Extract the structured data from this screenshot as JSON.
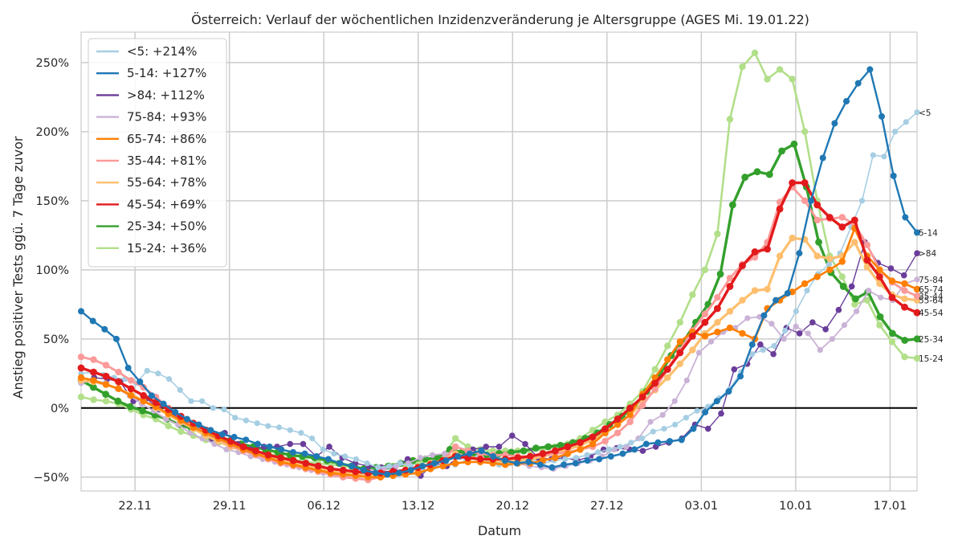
{
  "chart_data": {
    "type": "line",
    "title": "Österreich: Verlauf der wöchentlichen Inzidenzveränderung je Altersgruppe (AGES Mi. 19.01.22)",
    "xlabel": "Datum",
    "ylabel": "Anstieg positiver Tests ggü. 7 Tage zuvor",
    "x_start": "2021-11-18",
    "x_end": "2022-01-19",
    "xlim": [
      "2021-11-18",
      "2022-01-19"
    ],
    "ylim": [
      -60,
      272
    ],
    "xtick_labels": [
      "22.11",
      "29.11",
      "06.12",
      "13.12",
      "20.12",
      "27.12",
      "03.01",
      "10.01",
      "17.01"
    ],
    "ytick_labels": [
      "250%",
      "200%",
      "150%",
      "100%",
      "50%",
      "0%",
      "−50%"
    ],
    "yticks": [
      250,
      200,
      150,
      100,
      50,
      0,
      -50
    ],
    "grid": true,
    "legend_position": "top-left",
    "zero_line": true,
    "series": [
      {
        "name": "<5: +214%",
        "end_label": "<5",
        "color": "#a6cee3",
        "values": [
          25,
          26,
          24,
          22,
          21,
          18,
          27,
          25,
          21,
          13,
          5,
          5,
          0,
          -1,
          -7,
          -9,
          -11,
          -13,
          -14,
          -16,
          -18,
          -22,
          -30,
          -33,
          -35,
          -37,
          -40,
          -43,
          -42,
          -40,
          -42,
          -45,
          -43,
          -40,
          -41,
          -38,
          -36,
          -38,
          -41,
          -40,
          -38,
          -37,
          -40,
          -38,
          -37,
          -36,
          -34,
          -32,
          -30,
          -28,
          -25,
          -22,
          -17,
          -15,
          -12,
          -7,
          -2,
          1,
          7,
          14,
          26,
          39,
          42,
          45,
          56,
          70,
          85,
          97,
          104,
          112,
          131,
          150,
          183,
          182,
          200,
          207,
          214
        ]
      },
      {
        "name": "5-14: +127%",
        "end_label": "5-14",
        "color": "#1f78b4",
        "values": [
          70,
          63,
          57,
          50,
          29,
          19,
          9,
          3,
          -3,
          -8,
          -12,
          -16,
          -19,
          -21,
          -23,
          -26,
          -28,
          -30,
          -32,
          -33,
          -35,
          -37,
          -40,
          -42,
          -45,
          -47,
          -48,
          -47,
          -45,
          -42,
          -40,
          -38,
          -35,
          -33,
          -31,
          -35,
          -38,
          -40,
          -39,
          -41,
          -43,
          -41,
          -40,
          -38,
          -37,
          -35,
          -33,
          -30,
          -26,
          -25,
          -24,
          -23,
          -15,
          -3,
          5,
          12,
          23,
          46,
          67,
          78,
          83,
          112,
          150,
          181,
          206,
          222,
          235,
          245,
          211,
          168,
          138,
          127
        ]
      },
      {
        "name": ">84: +112%",
        "end_label": ">84",
        "color": "#6a3d9a",
        "values": [
          19,
          22,
          21,
          19,
          5,
          7,
          -1,
          -4,
          -11,
          -15,
          -22,
          -18,
          -26,
          -30,
          -28,
          -28,
          -26,
          -26,
          -35,
          -28,
          -36,
          -40,
          -42,
          -43,
          -43,
          -37,
          -49,
          -40,
          -42,
          -35,
          -30,
          -28,
          -28,
          -20,
          -26,
          -36,
          -37,
          -36,
          -38,
          -35,
          -30,
          -29,
          -30,
          -31,
          -28,
          -25,
          -22,
          -12,
          -15,
          -4,
          28,
          32,
          46,
          39,
          58,
          54,
          62,
          57,
          71,
          88,
          120,
          105,
          101,
          96,
          112
        ]
      },
      {
        "name": "75-84: +93%",
        "end_label": "75-84",
        "color": "#cab2d6",
        "values": [
          18,
          20,
          18,
          14,
          9,
          3,
          -2,
          -8,
          -12,
          -18,
          -22,
          -26,
          -30,
          -32,
          -35,
          -37,
          -39,
          -41,
          -43,
          -45,
          -47,
          -48,
          -49,
          -47,
          -46,
          -44,
          -42,
          -40,
          -36,
          -34,
          -33,
          -35,
          -36,
          -37,
          -39,
          -40,
          -40,
          -42,
          -43,
          -44,
          -42,
          -40,
          -38,
          -35,
          -30,
          -28,
          -22,
          -10,
          -5,
          5,
          20,
          40,
          48,
          55,
          58,
          65,
          66,
          61,
          50,
          59,
          54,
          42,
          50,
          60,
          70,
          85,
          80,
          78,
          90,
          93
        ]
      },
      {
        "name": "65-74: +86%",
        "end_label": "65-74",
        "color": "#ff7f00",
        "values": [
          22,
          20,
          17,
          14,
          9,
          5,
          1,
          -4,
          -9,
          -14,
          -18,
          -22,
          -26,
          -30,
          -33,
          -36,
          -39,
          -41,
          -43,
          -45,
          -47,
          -48,
          -49,
          -50,
          -50,
          -49,
          -48,
          -47,
          -44,
          -42,
          -40,
          -39,
          -39,
          -40,
          -41,
          -40,
          -40,
          -38,
          -36,
          -33,
          -30,
          -26,
          -18,
          -12,
          -5,
          10,
          22,
          35,
          48,
          55,
          52,
          55,
          58,
          54,
          50,
          72,
          78,
          84,
          90,
          95,
          100,
          106,
          130,
          110,
          100,
          92,
          90,
          86
        ]
      },
      {
        "name": "35-44: +81%",
        "end_label": "35-44",
        "color": "#fb9a99",
        "values": [
          37,
          35,
          31,
          26,
          20,
          15,
          8,
          0,
          -7,
          -12,
          -17,
          -22,
          -27,
          -31,
          -34,
          -37,
          -40,
          -42,
          -44,
          -46,
          -48,
          -50,
          -51,
          -52,
          -50,
          -48,
          -46,
          -44,
          -41,
          -38,
          -28,
          -31,
          -33,
          -34,
          -34,
          -35,
          -35,
          -34,
          -33,
          -32,
          -30,
          -28,
          -24,
          -18,
          -10,
          2,
          14,
          28,
          42,
          56,
          68,
          80,
          94,
          104,
          109,
          120,
          149,
          160,
          150,
          136,
          137,
          138,
          133,
          118,
          100,
          91,
          85,
          81
        ]
      },
      {
        "name": "55-64: +78%",
        "end_label": "55-64",
        "color": "#fdbf6f",
        "values": [
          20,
          19,
          17,
          14,
          10,
          5,
          0,
          -5,
          -10,
          -15,
          -20,
          -24,
          -28,
          -31,
          -34,
          -36,
          -38,
          -40,
          -42,
          -44,
          -46,
          -47,
          -48,
          -49,
          -48,
          -47,
          -45,
          -43,
          -40,
          -38,
          -33,
          -35,
          -37,
          -38,
          -39,
          -38,
          -37,
          -35,
          -33,
          -30,
          -27,
          -23,
          -18,
          -12,
          -5,
          4,
          13,
          22,
          32,
          42,
          54,
          62,
          70,
          78,
          85,
          86,
          110,
          123,
          122,
          110,
          108,
          110,
          120,
          102,
          90,
          82,
          79,
          78
        ]
      },
      {
        "name": "45-54: +69%",
        "end_label": "45-54",
        "color": "#e31a1c",
        "values": [
          29,
          26,
          23,
          19,
          14,
          9,
          4,
          -1,
          -6,
          -11,
          -16,
          -20,
          -24,
          -28,
          -31,
          -34,
          -36,
          -38,
          -40,
          -42,
          -44,
          -45,
          -46,
          -47,
          -47,
          -46,
          -45,
          -43,
          -41,
          -38,
          -35,
          -36,
          -37,
          -37,
          -37,
          -36,
          -35,
          -33,
          -31,
          -28,
          -25,
          -21,
          -15,
          -8,
          0,
          8,
          18,
          28,
          40,
          52,
          62,
          72,
          88,
          103,
          113,
          115,
          144,
          163,
          163,
          147,
          138,
          131,
          136,
          107,
          95,
          80,
          73,
          69
        ]
      },
      {
        "name": "25-34: +50%",
        "end_label": "25-34",
        "color": "#33a02c",
        "values": [
          20,
          15,
          10,
          5,
          1,
          -2,
          -5,
          -8,
          -12,
          -15,
          -18,
          -21,
          -24,
          -26,
          -28,
          -30,
          -32,
          -34,
          -35,
          -36,
          -38,
          -40,
          -42,
          -44,
          -43,
          -42,
          -40,
          -38,
          -37,
          -36,
          -30,
          -32,
          -33,
          -34,
          -33,
          -32,
          -31,
          -29,
          -28,
          -27,
          -25,
          -22,
          -18,
          -12,
          -6,
          1,
          12,
          23,
          38,
          48,
          62,
          75,
          97,
          147,
          167,
          171,
          169,
          186,
          191,
          160,
          120,
          98,
          88,
          79,
          84,
          66,
          54,
          49,
          50
        ]
      },
      {
        "name": "15-24: +36%",
        "end_label": "15-24",
        "color": "#b2df8a",
        "values": [
          8,
          6,
          5,
          3,
          -1,
          -5,
          -8,
          -13,
          -17,
          -20,
          -23,
          -25,
          -27,
          -29,
          -31,
          -33,
          -35,
          -37,
          -39,
          -40,
          -41,
          -42,
          -43,
          -44,
          -43,
          -42,
          -41,
          -40,
          -38,
          -35,
          -22,
          -28,
          -30,
          -31,
          -31,
          -31,
          -31,
          -30,
          -28,
          -26,
          -22,
          -16,
          -10,
          -5,
          3,
          12,
          28,
          45,
          62,
          82,
          100,
          126,
          209,
          247,
          257,
          238,
          245,
          238,
          200,
          150,
          110,
          95,
          75,
          78,
          60,
          48,
          37,
          36
        ]
      }
    ]
  }
}
